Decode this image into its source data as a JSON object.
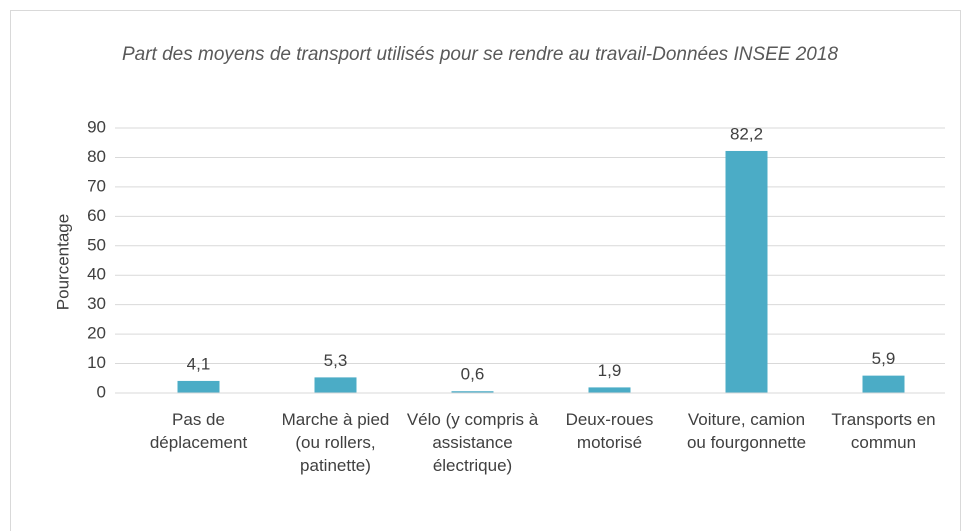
{
  "chart_data": {
    "type": "bar",
    "title": "Part des moyens de transport utilisés pour se rendre au travail-Données INSEE 2018",
    "y_label": "Pourcentage",
    "categories": [
      "Pas de déplacement",
      "Marche à pied (ou rollers, patinette)",
      "Vélo (y compris à assistance électrique)",
      "Deux-roues motorisé",
      "Voiture, camion ou fourgonnette",
      "Transports en commun"
    ],
    "values": [
      4.1,
      5.3,
      0.6,
      1.9,
      82.2,
      5.9
    ],
    "value_labels": [
      "4,1",
      "5,3",
      "0,6",
      "1,9",
      "82,2",
      "5,9"
    ],
    "color": "#4bacc6",
    "ylim": [
      0,
      90
    ],
    "yticks": [
      0,
      10,
      20,
      30,
      40,
      50,
      60,
      70,
      80,
      90
    ],
    "grid": true
  }
}
